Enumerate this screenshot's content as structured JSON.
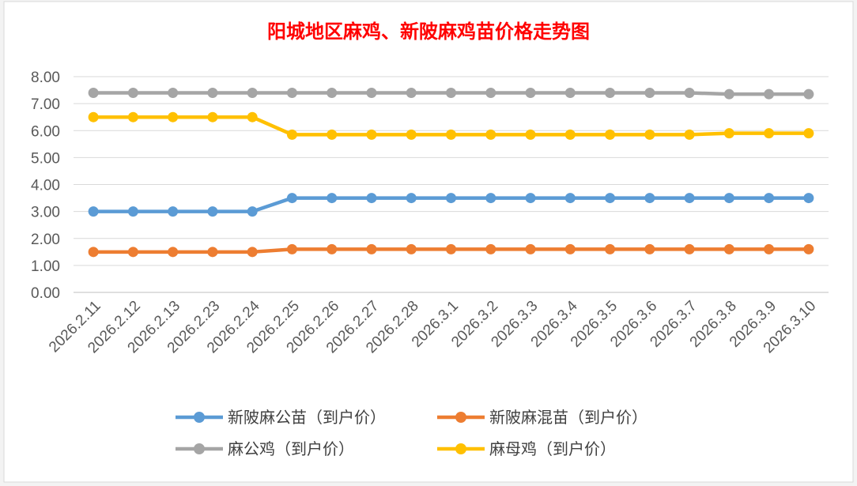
{
  "chart_data": {
    "type": "line",
    "title": "阳城地区麻鸡、新陂麻鸡苗价格走势图",
    "xlabel": "",
    "ylabel": "",
    "ylim": [
      0,
      8
    ],
    "yticks": [
      "0.00",
      "1.00",
      "2.00",
      "3.00",
      "4.00",
      "5.00",
      "6.00",
      "7.00",
      "8.00"
    ],
    "grid": true,
    "legend_position": "bottom",
    "categories": [
      "2026.2.11",
      "2026.2.12",
      "2026.2.13",
      "2026.2.23",
      "2026.2.24",
      "2026.2.25",
      "2026.2.26",
      "2026.2.27",
      "2026.2.28",
      "2026.3.1",
      "2026.3.2",
      "2026.3.3",
      "2026.3.4",
      "2026.3.5",
      "2026.3.6",
      "2026.3.7",
      "2026.3.8",
      "2026.3.9",
      "2026.3.10"
    ],
    "series": [
      {
        "name": "新陂麻公苗（到户价）",
        "color": "#5b9bd5",
        "values": [
          3.0,
          3.0,
          3.0,
          3.0,
          3.0,
          3.5,
          3.5,
          3.5,
          3.5,
          3.5,
          3.5,
          3.5,
          3.5,
          3.5,
          3.5,
          3.5,
          3.5,
          3.5,
          3.5
        ]
      },
      {
        "name": "新陂麻混苗（到户价）",
        "color": "#ed7d31",
        "values": [
          1.5,
          1.5,
          1.5,
          1.5,
          1.5,
          1.6,
          1.6,
          1.6,
          1.6,
          1.6,
          1.6,
          1.6,
          1.6,
          1.6,
          1.6,
          1.6,
          1.6,
          1.6,
          1.6
        ]
      },
      {
        "name": "麻公鸡（到户价）",
        "color": "#a5a5a5",
        "values": [
          7.4,
          7.4,
          7.4,
          7.4,
          7.4,
          7.4,
          7.4,
          7.4,
          7.4,
          7.4,
          7.4,
          7.4,
          7.4,
          7.4,
          7.4,
          7.4,
          7.35,
          7.35,
          7.35
        ]
      },
      {
        "name": "麻母鸡（到户价）",
        "color": "#ffc000",
        "values": [
          6.5,
          6.5,
          6.5,
          6.5,
          6.5,
          5.85,
          5.85,
          5.85,
          5.85,
          5.85,
          5.85,
          5.85,
          5.85,
          5.85,
          5.85,
          5.85,
          5.9,
          5.9,
          5.9
        ]
      }
    ]
  }
}
